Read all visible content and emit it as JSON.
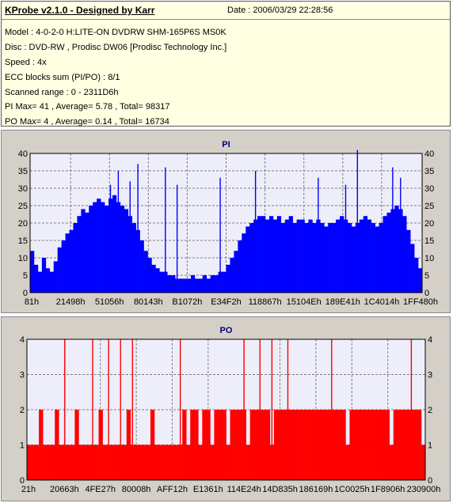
{
  "info": {
    "title": "KProbe v2.1.0 - Designed by Karr",
    "date": "Date : 2006/03/29 22:28:56",
    "lines": [
      "Model : 4-0-2-0 H:LITE-ON DVDRW SHM-165P6S MS0K",
      "Disc : DVD-RW , Prodisc DW06 [Prodisc Technology Inc.]",
      "Speed : 4x",
      "ECC blocks sum (PI/PO) : 8/1",
      "Scanned range : 0 - 2311D6h",
      "PI Max= 41 , Average= 5.78 , Total= 98317",
      "PO Max= 4 , Average= 0.14 , Total= 16734"
    ]
  },
  "colors": {
    "panel_bg": "#d4d0c8",
    "plot_bg": "#eeeefa",
    "pi_series": "#0000ff",
    "po_series": "#ff0000",
    "grid": "#7d7d7d",
    "title": "#000080"
  },
  "chart_data": [
    {
      "type": "bar",
      "title": "PI",
      "ylim": [
        0,
        40
      ],
      "yticks": [
        0,
        5,
        10,
        15,
        20,
        25,
        30,
        35,
        40
      ],
      "xticks": [
        "81h",
        "21498h",
        "51056h",
        "80143h",
        "B1072h",
        "E34F2h",
        "118867h",
        "15104Eh",
        "189E41h",
        "1C4014h",
        "1FF480h"
      ],
      "grid": true,
      "series": [
        {
          "color": "#0000ff",
          "values": [
            12,
            8,
            6,
            10,
            7,
            6,
            9,
            13,
            15,
            17,
            18,
            20,
            22,
            24,
            23,
            25,
            26,
            27,
            26,
            25,
            27,
            28,
            26,
            25,
            24,
            22,
            20,
            18,
            15,
            12,
            10,
            8,
            7,
            6,
            6,
            5,
            5,
            4,
            4,
            4,
            4,
            5,
            4,
            4,
            5,
            4,
            5,
            5,
            6,
            6,
            8,
            10,
            12,
            15,
            17,
            19,
            20,
            21,
            22,
            22,
            21,
            22,
            21,
            22,
            20,
            21,
            22,
            20,
            21,
            21,
            20,
            21,
            20,
            21,
            20,
            19,
            20,
            20,
            21,
            22,
            21,
            20,
            19,
            20,
            21,
            22,
            21,
            20,
            19,
            20,
            22,
            23,
            24,
            25,
            24,
            22,
            18,
            14,
            10,
            7
          ],
          "spikes": [
            [
              20,
              31
            ],
            [
              22,
              35
            ],
            [
              25,
              32
            ],
            [
              27,
              37
            ],
            [
              34,
              36
            ],
            [
              37,
              31
            ],
            [
              48,
              33
            ],
            [
              57,
              35
            ],
            [
              73,
              33
            ],
            [
              80,
              31
            ],
            [
              83,
              41
            ],
            [
              92,
              36
            ],
            [
              94,
              33
            ]
          ]
        }
      ]
    },
    {
      "type": "bar",
      "title": "PO",
      "ylim": [
        0,
        4
      ],
      "yticks": [
        0,
        1,
        2,
        3,
        4
      ],
      "xticks": [
        "21h",
        "20663h",
        "4FE27h",
        "80008h",
        "AFF12h",
        "E1361h",
        "114E24h",
        "14D835h",
        "186169h",
        "1C0025h",
        "1F8906h",
        "230900h"
      ],
      "grid": true,
      "series": [
        {
          "color": "#ff0000",
          "values": [
            1,
            1,
            1,
            2,
            1,
            1,
            1,
            2,
            1,
            1,
            1,
            1,
            2,
            1,
            1,
            1,
            1,
            1,
            2,
            1,
            1,
            1,
            1,
            1,
            1,
            2,
            1,
            1,
            1,
            1,
            1,
            2,
            1,
            1,
            1,
            1,
            1,
            1,
            1,
            2,
            1,
            2,
            2,
            1,
            2,
            2,
            1,
            2,
            2,
            2,
            1,
            2,
            2,
            2,
            2,
            1,
            2,
            2,
            2,
            2,
            2,
            1,
            2,
            2,
            2,
            2,
            2,
            2,
            2,
            2,
            2,
            2,
            2,
            2,
            2,
            2,
            2,
            2,
            2,
            2,
            1,
            2,
            2,
            2,
            2,
            2,
            2,
            2,
            2,
            2,
            2,
            1,
            2,
            2,
            2,
            2,
            2,
            2,
            2,
            1
          ],
          "spikes": [
            [
              9,
              4
            ],
            [
              16,
              4
            ],
            [
              20,
              4
            ],
            [
              23,
              4
            ],
            [
              26,
              4
            ],
            [
              38,
              4
            ],
            [
              54,
              4
            ],
            [
              58,
              4
            ],
            [
              61,
              4
            ],
            [
              65,
              4
            ],
            [
              76,
              4
            ],
            [
              96,
              4
            ]
          ]
        }
      ]
    }
  ]
}
